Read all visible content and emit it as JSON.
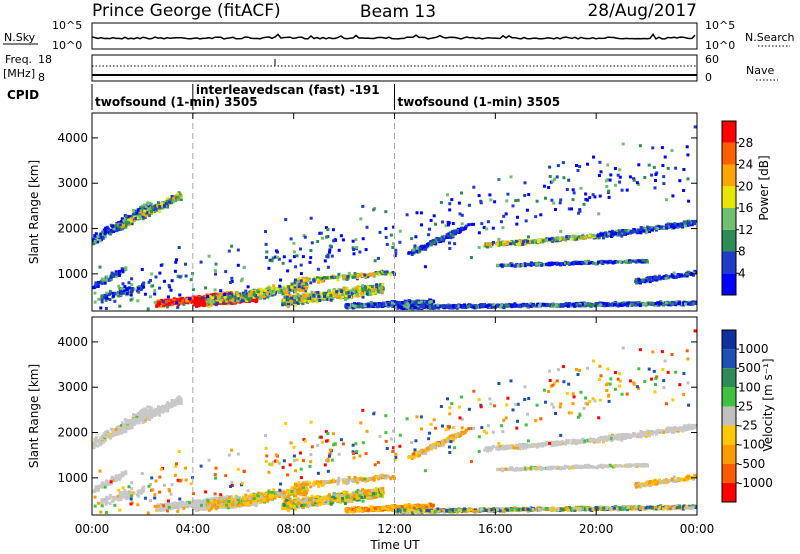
{
  "header": {
    "station": "Prince George (fitACF)",
    "beam": "Beam 13",
    "date": "28/Aug/2017"
  },
  "strip_labels": {
    "nsky": "N.Sky",
    "nsky_top": "10^5",
    "nsky_bottom": "10^0",
    "nsearch": "N.Search",
    "nsearch_top": "10^5",
    "nsearch_bottom": "10^0",
    "freq_line1": "Freq.",
    "freq_line2": "[MHz]",
    "freq_top": "18",
    "freq_bottom": "8",
    "nave": "Nave",
    "nave_top": "60",
    "nave_bottom": "0",
    "cpid": "CPID"
  },
  "cpid_segments": [
    {
      "start_hour": 0,
      "label": "twofsound (1-min) 3505"
    },
    {
      "start_hour": 4,
      "label": "interleavedscan (fast) -191"
    },
    {
      "start_hour": 12,
      "label": "twofsound (1-min) 3505"
    }
  ],
  "colors": {
    "power_scale": [
      "#0000ff",
      "#1e3cc8",
      "#2e8b57",
      "#6fbf6f",
      "#e6e600",
      "#ffa500",
      "#ff6000",
      "#ff0000"
    ],
    "velocity_scale": [
      "#ff0000",
      "#ff5a00",
      "#ff9b00",
      "#ffc800",
      "#c0c0c0",
      "#40c040",
      "#2e8b57",
      "#1e50b4",
      "#1030a0"
    ],
    "ground_scatter": "#c8c8c8"
  },
  "chart_data": [
    {
      "type": "heatmap",
      "panel": "power",
      "ylabel": "Slant Range [km]",
      "ylim": [
        180,
        4550
      ],
      "yticks": [
        "1000",
        "2000",
        "3000",
        "4000"
      ],
      "xlim_hours": [
        0,
        24
      ],
      "colorbar_label": "Power [dB]",
      "colorbar_ticks": [
        "4",
        "8",
        "12",
        "16",
        "20",
        "24",
        "28"
      ],
      "colorbar_range": [
        0,
        32
      ]
    },
    {
      "type": "heatmap",
      "panel": "velocity",
      "xlabel": "Time UT",
      "ylabel": "Slant Range [km]",
      "ylim": [
        180,
        4550
      ],
      "yticks": [
        "1000",
        "2000",
        "3000",
        "4000"
      ],
      "xticks": [
        "00:00",
        "04:00",
        "08:00",
        "12:00",
        "16:00",
        "20:00",
        "00:00"
      ],
      "colorbar_label": "Velocity [m s⁻¹]",
      "colorbar_ticks": [
        "1000",
        "500",
        "100",
        "25",
        "-25",
        "-100",
        "-500",
        "-1000"
      ]
    }
  ]
}
